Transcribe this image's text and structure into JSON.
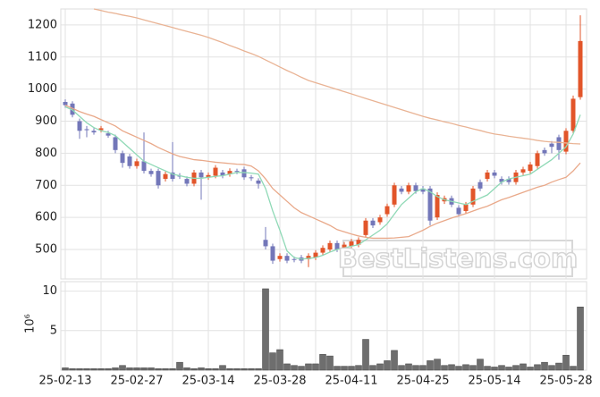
{
  "chart_data": [
    {
      "type": "candlestick",
      "categories": [
        "25-02-13",
        null,
        null,
        null,
        null,
        null,
        null,
        null,
        null,
        null,
        "25-02-27",
        null,
        null,
        null,
        null,
        null,
        null,
        null,
        null,
        null,
        "25-03-14",
        null,
        null,
        null,
        null,
        null,
        null,
        null,
        null,
        null,
        "25-03-28",
        null,
        null,
        null,
        null,
        null,
        null,
        null,
        null,
        null,
        "25-04-11",
        null,
        null,
        null,
        null,
        null,
        null,
        null,
        null,
        null,
        "25-04-25",
        null,
        null,
        null,
        null,
        null,
        null,
        null,
        null,
        null,
        "25-05-14",
        null,
        null,
        null,
        null,
        null,
        null,
        null,
        null,
        null,
        "25-05-28",
        null,
        null
      ],
      "open": [
        960,
        955,
        900,
        875,
        870,
        872,
        862,
        850,
        800,
        790,
        760,
        775,
        745,
        745,
        720,
        740,
        730,
        720,
        705,
        740,
        725,
        730,
        740,
        735,
        745,
        750,
        725,
        715,
        530,
        510,
        470,
        480,
        470,
        475,
        470,
        475,
        490,
        500,
        520,
        505,
        510,
        515,
        545,
        590,
        585,
        610,
        640,
        690,
        680,
        700,
        690,
        690,
        600,
        650,
        660,
        630,
        620,
        640,
        710,
        720,
        740,
        720,
        720,
        710,
        740,
        745,
        760,
        810,
        830,
        850,
        805,
        870,
        975
      ],
      "high": [
        968,
        962,
        908,
        885,
        878,
        885,
        870,
        858,
        808,
        798,
        783,
        865,
        752,
        752,
        743,
        835,
        738,
        728,
        748,
        748,
        740,
        763,
        748,
        753,
        752,
        758,
        732,
        722,
        570,
        518,
        488,
        488,
        478,
        483,
        488,
        498,
        513,
        528,
        528,
        523,
        533,
        538,
        598,
        598,
        608,
        643,
        708,
        698,
        708,
        708,
        698,
        698,
        678,
        668,
        668,
        638,
        648,
        698,
        718,
        748,
        748,
        728,
        728,
        748,
        758,
        773,
        808,
        818,
        838,
        858,
        878,
        980,
        1230
      ],
      "low": [
        942,
        912,
        845,
        850,
        858,
        865,
        848,
        800,
        755,
        752,
        752,
        737,
        727,
        690,
        712,
        712,
        720,
        697,
        697,
        655,
        717,
        722,
        722,
        727,
        735,
        717,
        714,
        690,
        500,
        455,
        462,
        457,
        460,
        457,
        445,
        467,
        482,
        492,
        492,
        497,
        502,
        507,
        537,
        567,
        577,
        602,
        632,
        672,
        672,
        674,
        672,
        575,
        592,
        642,
        632,
        602,
        612,
        632,
        682,
        712,
        722,
        702,
        702,
        702,
        732,
        737,
        752,
        792,
        800,
        780,
        797,
        862,
        967
      ],
      "close": [
        950,
        920,
        870,
        872,
        865,
        878,
        855,
        810,
        770,
        760,
        775,
        745,
        735,
        700,
        735,
        720,
        728,
        705,
        740,
        725,
        732,
        755,
        730,
        745,
        742,
        725,
        722,
        705,
        510,
        465,
        480,
        465,
        468,
        465,
        480,
        490,
        505,
        520,
        500,
        515,
        525,
        530,
        590,
        575,
        600,
        635,
        700,
        680,
        700,
        682,
        680,
        590,
        670,
        660,
        640,
        610,
        640,
        690,
        690,
        740,
        730,
        710,
        710,
        740,
        750,
        765,
        800,
        800,
        820,
        810,
        870,
        970,
        1150
      ],
      "up_color": "#e2552a",
      "down_color": "#7377b9",
      "series": [
        {
          "color": "#8fd9b6",
          "values": [
            945,
            935,
            915,
            895,
            880,
            870,
            865,
            855,
            835,
            815,
            795,
            775,
            765,
            755,
            745,
            735,
            730,
            725,
            722,
            722,
            725,
            728,
            730,
            735,
            740,
            740,
            738,
            735,
            690,
            620,
            560,
            495,
            475,
            470,
            472,
            475,
            482,
            492,
            500,
            505,
            510,
            515,
            530,
            545,
            560,
            580,
            610,
            640,
            660,
            680,
            690,
            680,
            665,
            655,
            650,
            645,
            640,
            650,
            660,
            670,
            690,
            710,
            720,
            725,
            730,
            735,
            750,
            765,
            780,
            800,
            820,
            860,
            920
          ]
        },
        {
          "color": "#e9a98a",
          "values": [
            950,
            940,
            930,
            922,
            915,
            905,
            895,
            885,
            870,
            860,
            850,
            840,
            830,
            818,
            808,
            798,
            790,
            785,
            780,
            778,
            775,
            772,
            770,
            768,
            766,
            765,
            760,
            745,
            720,
            690,
            670,
            650,
            630,
            615,
            605,
            595,
            585,
            575,
            562,
            555,
            548,
            542,
            538,
            535,
            535,
            535,
            536,
            538,
            540,
            550,
            560,
            572,
            582,
            590,
            598,
            605,
            612,
            620,
            628,
            635,
            645,
            655,
            662,
            670,
            678,
            686,
            694,
            700,
            710,
            718,
            725,
            745,
            770
          ]
        },
        {
          "color": "#e9b394",
          "values": [
            null,
            null,
            null,
            null,
            1250,
            1245,
            1240,
            1236,
            1231,
            1227,
            1222,
            1216,
            1210,
            1204,
            1198,
            1192,
            1186,
            1180,
            1174,
            1168,
            1161,
            1153,
            1145,
            1136,
            1128,
            1119,
            1111,
            1102,
            1091,
            1080,
            1069,
            1058,
            1048,
            1037,
            1027,
            1020,
            1013,
            1006,
            999,
            992,
            985,
            978,
            971,
            964,
            957,
            950,
            943,
            936,
            929,
            922,
            915,
            909,
            904,
            898,
            893,
            887,
            882,
            876,
            871,
            865,
            860,
            857,
            853,
            850,
            847,
            844,
            840,
            837,
            835,
            834,
            832,
            830,
            829
          ]
        }
      ],
      "ylim": [
        408,
        1250
      ],
      "yticks": [
        500,
        600,
        700,
        800,
        900,
        1000,
        1100,
        1200
      ],
      "grid": true,
      "watermark": "BestListens.com"
    },
    {
      "type": "bar",
      "color": "#6e6e6e",
      "axis_label": "10⁶",
      "values": [
        0.3,
        0.2,
        0.2,
        0.2,
        0.2,
        0.2,
        0.2,
        0.3,
        0.6,
        0.3,
        0.3,
        0.3,
        0.3,
        0.2,
        0.2,
        0.2,
        1.0,
        0.3,
        0.2,
        0.3,
        0.2,
        0.2,
        0.6,
        0.2,
        0.2,
        0.2,
        0.2,
        0.2,
        10.3,
        2.2,
        2.6,
        0.8,
        0.6,
        0.5,
        0.8,
        0.8,
        2.0,
        1.8,
        0.5,
        0.5,
        0.5,
        0.6,
        3.9,
        0.6,
        0.8,
        1.2,
        2.5,
        0.6,
        0.8,
        0.6,
        0.6,
        1.2,
        1.4,
        0.6,
        0.7,
        0.5,
        0.7,
        0.6,
        1.4,
        0.5,
        0.4,
        0.6,
        0.4,
        0.6,
        0.8,
        0.4,
        0.7,
        1.0,
        0.6,
        0.9,
        1.9,
        0.5,
        8.0
      ],
      "ylim": [
        0,
        11.2
      ],
      "yticks": [
        5,
        10
      ],
      "grid": true
    }
  ]
}
